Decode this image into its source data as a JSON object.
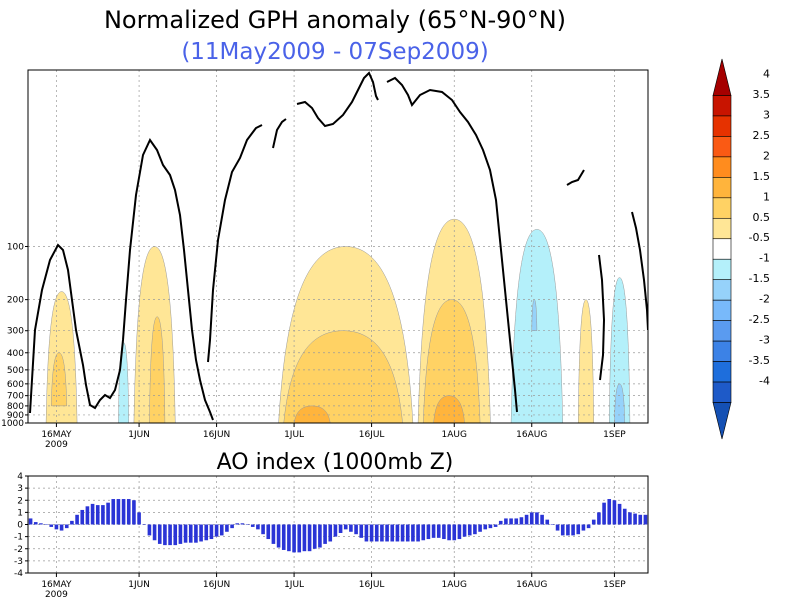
{
  "chart_data": [
    {
      "type": "heatmap",
      "title": "Normalized GPH anomaly (65°N-90°N)",
      "subtitle": "(11May2009 - 07Sep2009)",
      "x_range": [
        "2009-05-11",
        "2009-09-07"
      ],
      "x_ticks": [
        {
          "label": "16MAY",
          "sublabel": "2009",
          "date": "2009-05-16"
        },
        {
          "label": "1JUN",
          "date": "2009-06-01"
        },
        {
          "label": "16JUN",
          "date": "2009-06-16"
        },
        {
          "label": "1JUL",
          "date": "2009-07-01"
        },
        {
          "label": "16JUL",
          "date": "2009-07-16"
        },
        {
          "label": "1AUG",
          "date": "2009-08-01"
        },
        {
          "label": "16AUG",
          "date": "2009-08-16"
        },
        {
          "label": "1SEP",
          "date": "2009-09-01"
        }
      ],
      "y_ticks": [
        "100",
        "200",
        "300",
        "400",
        "500",
        "600",
        "700",
        "800",
        "900",
        "1000"
      ],
      "y_ticks_values": [
        100,
        200,
        300,
        400,
        500,
        600,
        700,
        800,
        900,
        1000
      ],
      "y_range_hpa": [
        10,
        1000
      ],
      "y_scale": "log",
      "grid": true,
      "colorbar": {
        "labels": [
          "4",
          "3.5",
          "3",
          "2.5",
          "2",
          "1.5",
          "1",
          "0.5",
          "-0.5",
          "-1",
          "-1.5",
          "-2",
          "-2.5",
          "-3",
          "-3.5",
          "-4"
        ],
        "colors": [
          "#a50000",
          "#c81400",
          "#e63200",
          "#fa5a14",
          "#ff8c1e",
          "#ffb43c",
          "#ffd264",
          "#ffe696",
          "#ffffff",
          "#b4f0fa",
          "#96d2fa",
          "#78b9fa",
          "#5a9bf0",
          "#3c82e6",
          "#1e6edc",
          "#1e5ac8",
          "#1450b4"
        ]
      },
      "anomaly_blobs": [
        {
          "level": 0.5,
          "date_start": "2009-05-14",
          "date_end": "2009-05-20",
          "p_top": 180,
          "p_bottom": 1000
        },
        {
          "level": 1.0,
          "date_start": "2009-05-15",
          "date_end": "2009-05-18",
          "p_top": 400,
          "p_bottom": 800
        },
        {
          "level": 0.5,
          "date_start": "2009-05-31",
          "date_end": "2009-06-08",
          "p_top": 100,
          "p_bottom": 1000
        },
        {
          "level": 1.0,
          "date_start": "2009-06-03",
          "date_end": "2009-06-06",
          "p_top": 250,
          "p_bottom": 1000
        },
        {
          "level": 0.5,
          "date_start": "2009-06-28",
          "date_end": "2009-07-24",
          "p_top": 100,
          "p_bottom": 1000
        },
        {
          "level": 1.0,
          "date_start": "2009-06-29",
          "date_end": "2009-07-22",
          "p_top": 300,
          "p_bottom": 1000
        },
        {
          "level": 1.5,
          "date_start": "2009-07-01",
          "date_end": "2009-07-08",
          "p_top": 800,
          "p_bottom": 1000
        },
        {
          "level": 0.5,
          "date_start": "2009-07-25",
          "date_end": "2009-08-08",
          "p_top": 70,
          "p_bottom": 1000
        },
        {
          "level": 1.0,
          "date_start": "2009-07-26",
          "date_end": "2009-08-06",
          "p_top": 200,
          "p_bottom": 1000
        },
        {
          "level": 1.5,
          "date_start": "2009-07-28",
          "date_end": "2009-08-03",
          "p_top": 700,
          "p_bottom": 1000
        },
        {
          "level": 0.5,
          "date_start": "2009-08-25",
          "date_end": "2009-08-28",
          "p_top": 200,
          "p_bottom": 1000
        },
        {
          "level": -0.5,
          "date_start": "2009-08-12",
          "date_end": "2009-08-22",
          "p_top": 80,
          "p_bottom": 1000
        },
        {
          "level": -1.0,
          "date_start": "2009-08-16",
          "date_end": "2009-08-17",
          "p_top": 200,
          "p_bottom": 300
        },
        {
          "level": -0.5,
          "date_start": "2009-08-31",
          "date_end": "2009-09-04",
          "p_top": 150,
          "p_bottom": 1000
        },
        {
          "level": -1.0,
          "date_start": "2009-09-01",
          "date_end": "2009-09-03",
          "p_top": 600,
          "p_bottom": 1000
        },
        {
          "level": -0.5,
          "date_start": "2009-05-28",
          "date_end": "2009-05-30",
          "p_top": 350,
          "p_bottom": 1000
        }
      ]
    },
    {
      "type": "bar",
      "title": "AO index (1000mb Z)",
      "x_range": [
        "2009-05-11",
        "2009-09-07"
      ],
      "x_ticks": [
        {
          "label": "16MAY",
          "sublabel": "2009",
          "date": "2009-05-16"
        },
        {
          "label": "1JUN",
          "date": "2009-06-01"
        },
        {
          "label": "16JUN",
          "date": "2009-06-16"
        },
        {
          "label": "1JUL",
          "date": "2009-07-01"
        },
        {
          "label": "16JUL",
          "date": "2009-07-16"
        },
        {
          "label": "1AUG",
          "date": "2009-08-01"
        },
        {
          "label": "16AUG",
          "date": "2009-08-16"
        },
        {
          "label": "1SEP",
          "date": "2009-09-01"
        }
      ],
      "y_ticks": [
        "4",
        "3",
        "2",
        "1",
        "0",
        "-1",
        "-2",
        "-3",
        "-4"
      ],
      "ylim": [
        -4,
        4
      ],
      "grid": true,
      "bar_color": "#2a34d6",
      "values": [
        0.5,
        0.2,
        0.1,
        0.0,
        -0.2,
        -0.4,
        -0.5,
        -0.3,
        0.3,
        0.8,
        1.2,
        1.5,
        1.7,
        1.6,
        1.6,
        1.8,
        2.1,
        2.1,
        2.1,
        2.1,
        2.0,
        1.0,
        0.0,
        -0.9,
        -1.3,
        -1.6,
        -1.7,
        -1.7,
        -1.7,
        -1.6,
        -1.5,
        -1.5,
        -1.5,
        -1.4,
        -1.3,
        -1.2,
        -1.0,
        -0.9,
        -0.6,
        -0.3,
        0.1,
        0.1,
        0.0,
        -0.2,
        -0.4,
        -0.8,
        -1.2,
        -1.6,
        -1.9,
        -2.1,
        -2.2,
        -2.3,
        -2.3,
        -2.2,
        -2.2,
        -2.0,
        -1.9,
        -1.6,
        -1.4,
        -1.0,
        -0.7,
        -0.4,
        -0.6,
        -0.8,
        -1.1,
        -1.4,
        -1.4,
        -1.4,
        -1.4,
        -1.4,
        -1.4,
        -1.4,
        -1.4,
        -1.4,
        -1.4,
        -1.4,
        -1.3,
        -1.2,
        -1.1,
        -1.1,
        -1.2,
        -1.3,
        -1.3,
        -1.2,
        -1.0,
        -0.9,
        -0.8,
        -0.6,
        -0.4,
        -0.3,
        -0.2,
        0.3,
        0.5,
        0.5,
        0.5,
        0.6,
        0.8,
        1.0,
        1.0,
        0.8,
        0.4,
        0.0,
        -0.5,
        -0.9,
        -0.9,
        -0.9,
        -0.8,
        -0.5,
        -0.3,
        0.4,
        1.0,
        1.8,
        2.1,
        2.0,
        1.7,
        1.3,
        1.0,
        0.9,
        0.8,
        0.8
      ]
    }
  ]
}
